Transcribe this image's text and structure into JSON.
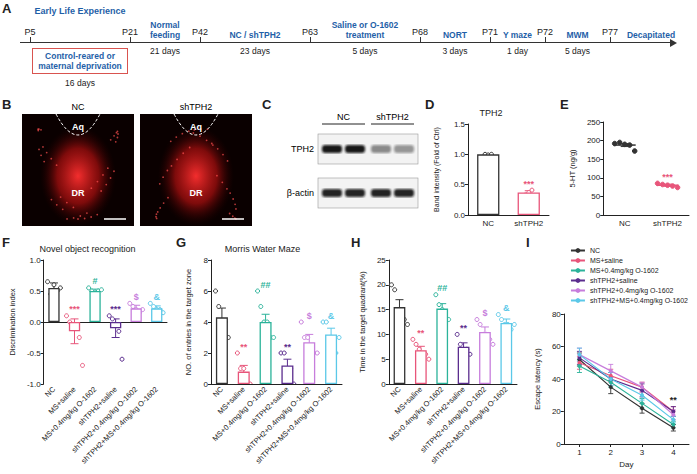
{
  "panel_labels": [
    "A",
    "B",
    "C",
    "D",
    "E",
    "F",
    "G",
    "H",
    "I"
  ],
  "timeline": {
    "header": "Early Life Experience",
    "points": [
      "P5",
      "P21",
      "P42",
      "P63",
      "P68",
      "P71",
      "P72",
      "P77"
    ],
    "stages": [
      {
        "label": "Control-reared or maternal deprivation",
        "duration": "16 days"
      },
      {
        "label": "Normal feeding",
        "duration": "21 days"
      },
      {
        "label": "NC / shTPH2",
        "duration": "23 days"
      },
      {
        "label": "Saline or O-1602 treatment",
        "duration": "5 days"
      },
      {
        "label": "NORT",
        "duration": "3 days"
      },
      {
        "label": "Y maze",
        "duration": "1 day"
      },
      {
        "label": "MWM",
        "duration": "5 days"
      }
    ],
    "end": "Decapitated"
  },
  "panel_B": {
    "images": [
      "NC",
      "shTPH2"
    ],
    "regions": [
      "Aq",
      "DR"
    ]
  },
  "panel_C": {
    "lanes": [
      "NC",
      "shTPH2"
    ],
    "bands": [
      "TPH2",
      "β-actin"
    ]
  },
  "chart_data": [
    {
      "type": "bar",
      "title": "TPH2",
      "ylabel": "Band intensity (Fold of Ctrl)",
      "categories": [
        "NC",
        "shTPH2"
      ],
      "values": [
        1.0,
        0.37
      ],
      "errors": [
        0.01,
        0.03
      ],
      "points": [
        [
          1.0,
          0.99,
          1.0
        ],
        [
          0.33,
          0.37,
          0.41
        ]
      ],
      "colors": [
        "#333333",
        "#e8557a"
      ],
      "annotations": [
        null,
        "***"
      ],
      "ylim": [
        0,
        1.5
      ],
      "yticks": [
        {
          "value": 0,
          "label": "0.0"
        },
        {
          "value": 0.5,
          "label": "0.5"
        },
        {
          "value": 1,
          "label": "1.0"
        },
        {
          "value": 1.5,
          "label": "1.5"
        }
      ],
      "grid": false
    },
    {
      "type": "scatter",
      "ylabel": "5-HT (ng/g)",
      "categories": [
        "NC",
        "shTPH2"
      ],
      "values": [
        188,
        80
      ],
      "errors": [
        4,
        3
      ],
      "points": [
        [
          192,
          195,
          190,
          188,
          172
        ],
        [
          85,
          82,
          80,
          78,
          74
        ]
      ],
      "colors": [
        "#333333",
        "#e8557a"
      ],
      "annotations": [
        null,
        "***"
      ],
      "ylim": [
        0,
        250
      ],
      "yticks": [
        0,
        50,
        100,
        150,
        200,
        250
      ],
      "grid": false
    },
    {
      "type": "bar",
      "title": "Novel object recognition",
      "ylabel": "Discrimination index",
      "categories": [
        "NC",
        "MS+saline",
        "MS+0.4mg/kg O-1602",
        "shTPH2+saline",
        "shTPH2+0.4mg/kg O-1602",
        "shTPH2+MS+0.4mg/kg O-1602"
      ],
      "values": [
        0.55,
        -0.15,
        0.5,
        -0.1,
        0.22,
        0.22
      ],
      "errors": [
        0.08,
        0.2,
        0.03,
        0.15,
        0.05,
        0.04
      ],
      "points": [
        [
          0.65,
          0.45,
          0.6,
          0.5,
          0.55
        ],
        [
          0.1,
          0.0,
          -0.05,
          -0.1,
          -0.25,
          -0.7
        ],
        [
          0.55,
          0.5,
          0.45,
          0.5,
          0.52
        ],
        [
          0.1,
          0.05,
          -0.05,
          -0.15,
          -0.6
        ],
        [
          0.3,
          0.25,
          0.2,
          0.15,
          0.2
        ],
        [
          0.3,
          0.25,
          0.2,
          0.2,
          0.15
        ]
      ],
      "colors": [
        "#333333",
        "#e8557a",
        "#2bb39a",
        "#5b2d8e",
        "#c77ddc",
        "#5bc8e8"
      ],
      "annotations": [
        null,
        "***",
        "#",
        "***",
        "$",
        "&"
      ],
      "ylim": [
        -1,
        1
      ],
      "yticks": [
        {
          "value": -1,
          "label": "-1.0"
        },
        {
          "value": -0.5,
          "label": "-0.5"
        },
        {
          "value": 0,
          "label": "0.0"
        },
        {
          "value": 0.5,
          "label": "0.5"
        },
        {
          "value": 1,
          "label": "1.0"
        }
      ],
      "grid": false
    },
    {
      "type": "bar",
      "title": "Morris Water Maze",
      "ylabel": "NO. of entries in the target zone",
      "categories": [
        "NC",
        "MS+saline",
        "MS+0.4mg/kg O-1602",
        "shTPH2+saline",
        "shTPH2+0.4mg/kg O-1602",
        "shTPH2+MS+0.4mg/kg O-1602"
      ],
      "values": [
        4.3,
        0.8,
        4.0,
        1.2,
        2.7,
        3.2
      ],
      "errors": [
        0.6,
        0.4,
        0.5,
        0.4,
        0.5,
        0.4
      ],
      "points": [
        [
          6,
          5,
          4,
          4,
          3
        ],
        [
          2,
          1,
          1,
          0,
          0
        ],
        [
          6,
          5,
          4,
          4,
          3,
          3
        ],
        [
          2,
          2,
          1,
          1,
          0
        ],
        [
          4,
          3,
          3,
          2,
          2,
          2
        ],
        [
          4,
          4,
          3,
          3,
          2,
          3
        ]
      ],
      "colors": [
        "#333333",
        "#e8557a",
        "#2bb39a",
        "#5b2d8e",
        "#c77ddc",
        "#5bc8e8"
      ],
      "annotations": [
        null,
        "**",
        "##",
        "**",
        "$",
        "&"
      ],
      "ylim": [
        0,
        8
      ],
      "yticks": [
        0,
        2,
        4,
        6,
        8
      ],
      "grid": false
    },
    {
      "type": "bar",
      "ylabel": "Time in the target quadrant(%)",
      "categories": [
        "NC",
        "MS+saline",
        "MS+0.4mg/kg O-1602",
        "shTPH2+saline",
        "shTPH2+0.4mg/kg O-1602",
        "shTPH2+MS+0.4mg/kg O-1602"
      ],
      "values": [
        15.5,
        6.8,
        15.2,
        7.5,
        10.5,
        12.3
      ],
      "errors": [
        1.5,
        0.8,
        1.0,
        0.8,
        1.0,
        0.8
      ],
      "points": [
        [
          20,
          19,
          15,
          14,
          13,
          12
        ],
        [
          9,
          8,
          7,
          6,
          6,
          5
        ],
        [
          18,
          16,
          15,
          14,
          13
        ],
        [
          10,
          8,
          7,
          7,
          6
        ],
        [
          13,
          12,
          10,
          10,
          9,
          8
        ],
        [
          14,
          13,
          12,
          12,
          11,
          12
        ]
      ],
      "colors": [
        "#333333",
        "#e8557a",
        "#2bb39a",
        "#5b2d8e",
        "#c77ddc",
        "#5bc8e8"
      ],
      "annotations": [
        null,
        "**",
        "##",
        "**",
        "$",
        "&"
      ],
      "ylim": [
        0,
        25
      ],
      "yticks": [
        0,
        5,
        10,
        15,
        20,
        25
      ],
      "grid": false
    },
    {
      "type": "line",
      "xlabel": "Day",
      "ylabel": "Escape latency (s)",
      "categories": [
        "1",
        "2",
        "3",
        "4"
      ],
      "series": [
        {
          "name": "NC",
          "color": "#333333",
          "values": [
            52,
            35,
            22,
            10
          ],
          "errors": [
            4,
            4,
            3,
            2
          ]
        },
        {
          "name": "MS+saline",
          "color": "#e8557a",
          "values": [
            50,
            42,
            35,
            20
          ],
          "errors": [
            4,
            4,
            3,
            3
          ]
        },
        {
          "name": "MS+0.4mg/kg O-1602",
          "color": "#2bb39a",
          "values": [
            48,
            38,
            25,
            12
          ],
          "errors": [
            4,
            3,
            3,
            2
          ]
        },
        {
          "name": "shTPH2+saline",
          "color": "#5b2d8e",
          "values": [
            53,
            40,
            33,
            20
          ],
          "errors": [
            4,
            4,
            4,
            3
          ]
        },
        {
          "name": "shTPH2+0.4mg/kg O-1602",
          "color": "#c77ddc",
          "values": [
            55,
            45,
            35,
            18
          ],
          "errors": [
            4,
            4,
            3,
            3
          ]
        },
        {
          "name": "shTPH2+MS+0.4mg/kg O-1602",
          "color": "#5bc8e8",
          "values": [
            55,
            40,
            30,
            15
          ],
          "errors": [
            4,
            4,
            3,
            2
          ]
        }
      ],
      "annotations": [
        {
          "category": "4",
          "text": "**"
        }
      ],
      "ylim": [
        0,
        80
      ],
      "yticks": [
        0,
        20,
        40,
        60,
        80
      ],
      "marker": "circle",
      "legend": "upper right",
      "grid": false
    }
  ]
}
